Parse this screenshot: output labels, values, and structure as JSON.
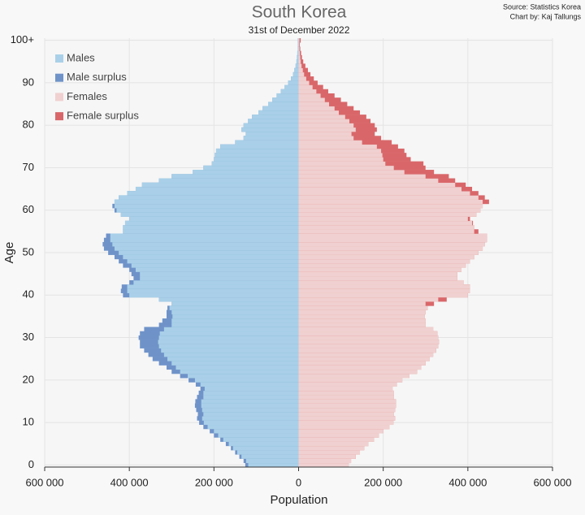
{
  "chart_data": {
    "type": "pyramid",
    "title": "South Korea",
    "subtitle": "31st of December 2022",
    "source": "Source: Statistics Korea",
    "credit": "Chart by: Kaj Tallungs",
    "xlabel": "Population",
    "ylabel": "Age",
    "xlim": [
      -600000,
      600000
    ],
    "xticks": [
      {
        "value": -600000,
        "label": "600 000"
      },
      {
        "value": -400000,
        "label": "400 000"
      },
      {
        "value": -200000,
        "label": "200 000"
      },
      0,
      {
        "value": 200000,
        "label": "200 000"
      },
      {
        "value": 400000,
        "label": "400 000"
      },
      {
        "value": 600000,
        "label": "600 000"
      }
    ],
    "ylim": [
      -0.5,
      100.5
    ],
    "yticks": [
      0,
      10,
      20,
      30,
      40,
      50,
      60,
      70,
      80,
      90,
      {
        "value": 100,
        "label": "100+"
      }
    ],
    "grid": true,
    "categories": [
      0,
      1,
      2,
      3,
      4,
      5,
      6,
      7,
      8,
      9,
      10,
      11,
      12,
      13,
      14,
      15,
      16,
      17,
      18,
      19,
      20,
      21,
      22,
      23,
      24,
      25,
      26,
      27,
      28,
      29,
      30,
      31,
      32,
      33,
      34,
      35,
      36,
      37,
      38,
      39,
      40,
      41,
      42,
      43,
      44,
      45,
      46,
      47,
      48,
      49,
      50,
      51,
      52,
      53,
      54,
      55,
      56,
      57,
      58,
      59,
      60,
      61,
      62,
      63,
      64,
      65,
      66,
      67,
      68,
      69,
      70,
      71,
      72,
      73,
      74,
      75,
      76,
      77,
      78,
      79,
      80,
      81,
      82,
      83,
      84,
      85,
      86,
      87,
      88,
      89,
      90,
      91,
      92,
      93,
      94,
      95,
      96,
      97,
      98,
      99,
      100
    ],
    "series": [
      {
        "name": "Males",
        "color": "#a9d0e8",
        "surplus_name": "Male surplus",
        "surplus_color": "#6f93c9",
        "side": "left",
        "values": [
          126000,
          130000,
          140000,
          150000,
          160000,
          172000,
          185000,
          200000,
          210000,
          225000,
          235000,
          240000,
          238000,
          242000,
          245000,
          244000,
          240000,
          236000,
          232000,
          243000,
          260000,
          280000,
          300000,
          312000,
          330000,
          345000,
          355000,
          365000,
          375000,
          375000,
          378000,
          375000,
          365000,
          330000,
          322000,
          312000,
          312000,
          310000,
          300000,
          330000,
          415000,
          420000,
          418000,
          400000,
          390000,
          395000,
          400000,
          415000,
          425000,
          435000,
          450000,
          460000,
          463000,
          460000,
          455000,
          415000,
          415000,
          410000,
          400000,
          420000,
          435000,
          440000,
          435000,
          425000,
          405000,
          385000,
          370000,
          330000,
          300000,
          250000,
          225000,
          205000,
          200000,
          198000,
          195000,
          185000,
          150000,
          130000,
          125000,
          135000,
          130000,
          120000,
          110000,
          95000,
          85000,
          72000,
          62000,
          52000,
          42000,
          33000,
          25000,
          18000,
          13000,
          10000,
          7000,
          5000,
          4000,
          3000,
          2000,
          1500,
          2000
        ]
      },
      {
        "name": "Females",
        "color": "#f0d0d0",
        "surplus_name": "Female surplus",
        "surplus_color": "#d9676a",
        "side": "right",
        "values": [
          119000,
          124000,
          135000,
          145000,
          155000,
          165000,
          178000,
          190000,
          200000,
          215000,
          224000,
          228000,
          225000,
          228000,
          230000,
          230000,
          225000,
          225000,
          222000,
          232000,
          245000,
          262000,
          280000,
          290000,
          300000,
          310000,
          318000,
          325000,
          330000,
          332000,
          330000,
          328000,
          318000,
          300000,
          300000,
          298000,
          300000,
          305000,
          320000,
          350000,
          400000,
          405000,
          405000,
          390000,
          375000,
          375000,
          385000,
          395000,
          405000,
          415000,
          425000,
          435000,
          440000,
          445000,
          445000,
          425000,
          415000,
          412000,
          405000,
          420000,
          430000,
          435000,
          450000,
          440000,
          425000,
          410000,
          395000,
          370000,
          355000,
          320000,
          300000,
          295000,
          265000,
          255000,
          250000,
          235000,
          220000,
          195000,
          180000,
          185000,
          180000,
          170000,
          160000,
          145000,
          130000,
          115000,
          100000,
          85000,
          70000,
          58000,
          45000,
          36000,
          28000,
          22000,
          16000,
          11000,
          8000,
          6000,
          4000,
          3000,
          5000
        ]
      }
    ]
  }
}
